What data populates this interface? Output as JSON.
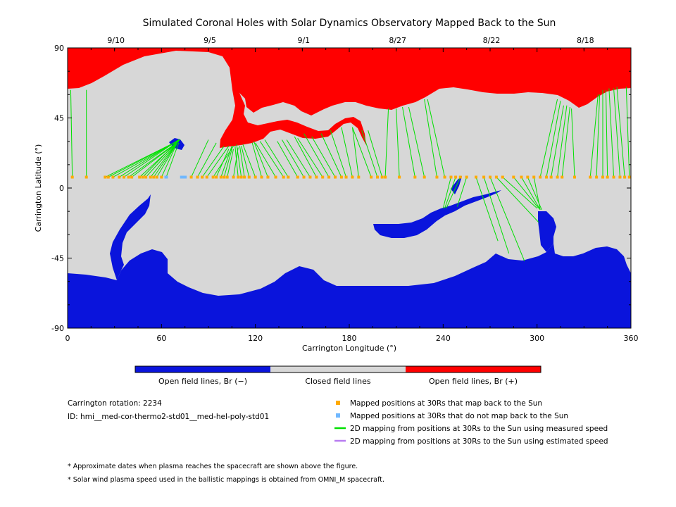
{
  "chart_data": {
    "type": "heatmap",
    "title": "Simulated Coronal Holes with Solar Dynamics Observatory Mapped Back to the Sun",
    "xlabel": "Carrington Longitude (°)",
    "ylabel": "Carrington Latitude (°)",
    "xlim": [
      0,
      360
    ],
    "ylim": [
      -90,
      90
    ],
    "x_ticks": [
      "0",
      "60",
      "120",
      "180",
      "240",
      "300",
      "360"
    ],
    "y_ticks": [
      "90",
      "45",
      "0",
      "-45",
      "-90"
    ],
    "top_dates": [
      {
        "label": "9/10",
        "lon": 30
      },
      {
        "label": "9/5",
        "lon": 90
      },
      {
        "label": "9/1",
        "lon": 150
      },
      {
        "label": "8/27",
        "lon": 210
      },
      {
        "label": "8/22",
        "lon": 270
      },
      {
        "label": "8/18",
        "lon": 330
      }
    ],
    "colorbar": [
      {
        "label": "Open field lines, Br (−)",
        "color": "#0a14dc"
      },
      {
        "label": "Closed field lines",
        "color": "#d7d7d7"
      },
      {
        "label": "Open field lines, Br (+)",
        "color": "#ff0000"
      }
    ],
    "mapped_positions_lat": 7,
    "unmapped_lon": [
      63,
      73,
      75
    ],
    "mappings": [
      {
        "lon": 3,
        "slon": 2,
        "slat": 63
      },
      {
        "lon": 12,
        "slon": 12,
        "slat": 63
      },
      {
        "lon": 24,
        "slon": 72,
        "slat": 31
      },
      {
        "lon": 26,
        "slon": 72,
        "slat": 31
      },
      {
        "lon": 29,
        "slon": 72,
        "slat": 31
      },
      {
        "lon": 33,
        "slon": 71,
        "slat": 31
      },
      {
        "lon": 36,
        "slon": 71,
        "slat": 31
      },
      {
        "lon": 39,
        "slon": 71,
        "slat": 30
      },
      {
        "lon": 41,
        "slon": 71,
        "slat": 30
      },
      {
        "lon": 46,
        "slon": 71,
        "slat": 30
      },
      {
        "lon": 48,
        "slon": 70,
        "slat": 30
      },
      {
        "lon": 50,
        "slon": 70,
        "slat": 29
      },
      {
        "lon": 53,
        "slon": 70,
        "slat": 29
      },
      {
        "lon": 55,
        "slon": 70,
        "slat": 29
      },
      {
        "lon": 57,
        "slon": 70,
        "slat": 29
      },
      {
        "lon": 60,
        "slon": 70,
        "slat": 29
      },
      {
        "lon": 63,
        "slon": 71,
        "slat": 29
      },
      {
        "lon": 79,
        "slon": 90,
        "slat": 31
      },
      {
        "lon": 83,
        "slon": 95,
        "slat": 29
      },
      {
        "lon": 86,
        "slon": 100,
        "slat": 27
      },
      {
        "lon": 89,
        "slon": 103,
        "slat": 27
      },
      {
        "lon": 93,
        "slon": 106,
        "slat": 27
      },
      {
        "lon": 95,
        "slon": 103,
        "slat": 25
      },
      {
        "lon": 98,
        "slon": 105,
        "slat": 27
      },
      {
        "lon": 100,
        "slon": 105,
        "slat": 25
      },
      {
        "lon": 102,
        "slon": 106,
        "slat": 25
      },
      {
        "lon": 106,
        "slon": 109,
        "slat": 26
      },
      {
        "lon": 109,
        "slon": 107,
        "slat": 27
      },
      {
        "lon": 111,
        "slon": 108,
        "slat": 28
      },
      {
        "lon": 113,
        "slon": 110,
        "slat": 27
      },
      {
        "lon": 116,
        "slon": 111,
        "slat": 27
      },
      {
        "lon": 120,
        "slon": 112,
        "slat": 28
      },
      {
        "lon": 124,
        "slon": 118,
        "slat": 29
      },
      {
        "lon": 128,
        "slon": 119,
        "slat": 30
      },
      {
        "lon": 133,
        "slon": 120,
        "slat": 29
      },
      {
        "lon": 138,
        "slon": 123,
        "slat": 30
      },
      {
        "lon": 141,
        "slon": 126,
        "slat": 31
      },
      {
        "lon": 147,
        "slon": 134,
        "slat": 30
      },
      {
        "lon": 151,
        "slon": 137,
        "slat": 31
      },
      {
        "lon": 155,
        "slon": 140,
        "slat": 31
      },
      {
        "lon": 159,
        "slon": 145,
        "slat": 33
      },
      {
        "lon": 163,
        "slon": 147,
        "slat": 32
      },
      {
        "lon": 167,
        "slon": 151,
        "slat": 35
      },
      {
        "lon": 171,
        "slon": 156,
        "slat": 33
      },
      {
        "lon": 175,
        "slon": 162,
        "slat": 35
      },
      {
        "lon": 178,
        "slon": 168,
        "slat": 37
      },
      {
        "lon": 182,
        "slon": 175,
        "slat": 39
      },
      {
        "lon": 186,
        "slon": 182,
        "slat": 39
      },
      {
        "lon": 194,
        "slon": 182,
        "slat": 39
      },
      {
        "lon": 198,
        "slon": 188,
        "slat": 37
      },
      {
        "lon": 201,
        "slon": 192,
        "slat": 37
      },
      {
        "lon": 203,
        "slon": 205,
        "slat": 51
      },
      {
        "lon": 212,
        "slon": 210,
        "slat": 51
      },
      {
        "lon": 222,
        "slon": 214,
        "slat": 52
      },
      {
        "lon": 228,
        "slon": 218,
        "slat": 52
      },
      {
        "lon": 236,
        "slon": 228,
        "slat": 57
      },
      {
        "lon": 241,
        "slon": 230,
        "slat": 57
      },
      {
        "lon": 245,
        "slon": 240,
        "slat": -13
      },
      {
        "lon": 248,
        "slon": 241,
        "slat": -13
      },
      {
        "lon": 251,
        "slon": 242,
        "slat": -13
      },
      {
        "lon": 255,
        "slon": 249,
        "slat": -12
      },
      {
        "lon": 261,
        "slon": 275,
        "slat": -34
      },
      {
        "lon": 266,
        "slon": 282,
        "slat": -42
      },
      {
        "lon": 270,
        "slon": 292,
        "slat": -47
      },
      {
        "lon": 274,
        "slon": 301,
        "slat": -22
      },
      {
        "lon": 278,
        "slon": 300,
        "slat": -13
      },
      {
        "lon": 285,
        "slon": 301,
        "slat": -13
      },
      {
        "lon": 290,
        "slon": 302,
        "slat": -14
      },
      {
        "lon": 294,
        "slon": 303,
        "slat": -14
      },
      {
        "lon": 298,
        "slon": 302,
        "slat": -14
      },
      {
        "lon": 302,
        "slon": 313,
        "slat": 57
      },
      {
        "lon": 306,
        "slon": 315,
        "slat": 56
      },
      {
        "lon": 309,
        "slon": 317,
        "slat": 53
      },
      {
        "lon": 313,
        "slon": 319,
        "slat": 53
      },
      {
        "lon": 316,
        "slon": 321,
        "slat": 52
      },
      {
        "lon": 324,
        "slon": 322,
        "slat": 51
      },
      {
        "lon": 334,
        "slon": 339,
        "slat": 60
      },
      {
        "lon": 338,
        "slon": 340,
        "slat": 60
      },
      {
        "lon": 342,
        "slon": 342,
        "slat": 63
      },
      {
        "lon": 345,
        "slon": 344,
        "slat": 63
      },
      {
        "lon": 349,
        "slon": 346,
        "slat": 64
      },
      {
        "lon": 353,
        "slon": 349,
        "slat": 64
      },
      {
        "lon": 356,
        "slon": 351,
        "slat": 65
      },
      {
        "lon": 359,
        "slon": 357,
        "slat": 65
      }
    ]
  },
  "legend": {
    "rotation": "Carrington rotation: 2234",
    "id": "ID: hmi__med-cor-thermo2-std01__med-hel-poly-std01",
    "items": [
      {
        "label": "Mapped positions at 30Rs that map back to the Sun",
        "color": "#ffaa00",
        "kind": "square"
      },
      {
        "label": "Mapped positions at 30Rs that do not map back to the Sun",
        "color": "#70b8ff",
        "kind": "square"
      },
      {
        "label": "2D mapping from positions at 30Rs to the Sun using measured speed",
        "color": "#00e000",
        "kind": "line"
      },
      {
        "label": "2D mapping from positions at 30Rs to the Sun using estimated speed",
        "color": "#b87cf0",
        "kind": "line"
      }
    ]
  },
  "notes": [
    "* Approximate dates when plasma reaches the spacecraft are shown above the figure.",
    "* Solar wind plasma speed used in the ballistic mappings is obtained from OMNI_M spacecraft."
  ]
}
